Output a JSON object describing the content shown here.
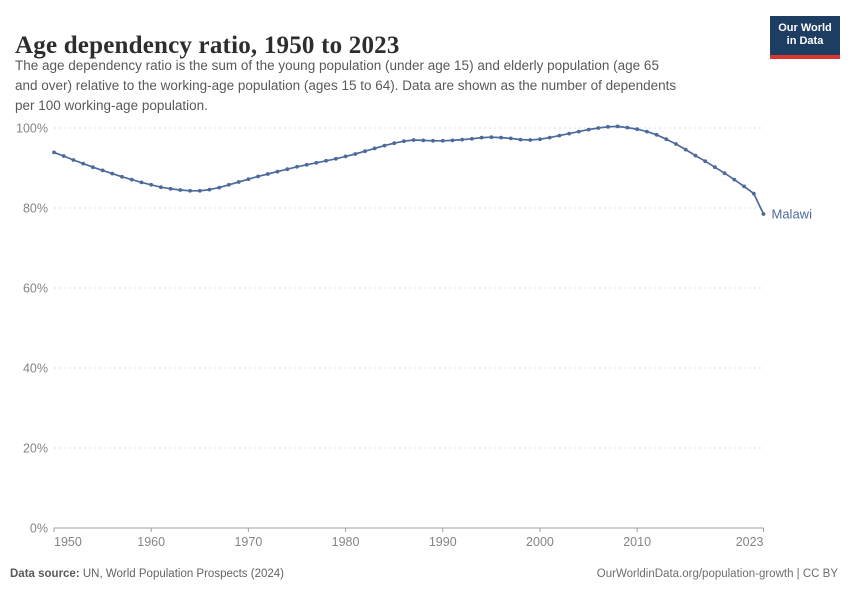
{
  "header": {
    "title": "Age dependency ratio, 1950 to 2023",
    "logo": {
      "line1": "Our World",
      "line2": "in Data"
    }
  },
  "subtitle": {
    "text": "The age dependency ratio is the sum of the young population (under age 15) and elderly population (age 65\nand over) relative to the working-age population (ages 15 to 64). Data are shown as the number of dependents\nper 100 working-age population."
  },
  "chart_data": {
    "type": "line",
    "title": "Age dependency ratio, 1950 to 2023",
    "xlabel": "",
    "ylabel": "",
    "unit": "%",
    "x_domain": [
      1950,
      2023
    ],
    "ylim": [
      0,
      105
    ],
    "yticks": [
      0,
      20,
      40,
      60,
      80,
      100
    ],
    "ytick_suffix": "%",
    "xticks": [
      1950,
      1960,
      1970,
      1980,
      1990,
      2000,
      2010,
      2023
    ],
    "grid": "horizontal-dashed",
    "legend": "end-of-line-label",
    "years": [
      1950,
      1951,
      1952,
      1953,
      1954,
      1955,
      1956,
      1957,
      1958,
      1959,
      1960,
      1961,
      1962,
      1963,
      1964,
      1965,
      1966,
      1967,
      1968,
      1969,
      1970,
      1971,
      1972,
      1973,
      1974,
      1975,
      1976,
      1977,
      1978,
      1979,
      1980,
      1981,
      1982,
      1983,
      1984,
      1985,
      1986,
      1987,
      1988,
      1989,
      1990,
      1991,
      1992,
      1993,
      1994,
      1995,
      1996,
      1997,
      1998,
      1999,
      2000,
      2001,
      2002,
      2003,
      2004,
      2005,
      2006,
      2007,
      2008,
      2009,
      2010,
      2011,
      2012,
      2013,
      2014,
      2015,
      2016,
      2017,
      2018,
      2019,
      2020,
      2021,
      2022,
      2023
    ],
    "series": [
      {
        "name": "Malawi",
        "color": "#4c6a9c",
        "values": [
          93.9,
          93.0,
          92.0,
          91.1,
          90.2,
          89.4,
          88.6,
          87.8,
          87.1,
          86.4,
          85.8,
          85.2,
          84.8,
          84.5,
          84.3,
          84.3,
          84.6,
          85.1,
          85.8,
          86.5,
          87.2,
          87.9,
          88.5,
          89.1,
          89.7,
          90.3,
          90.8,
          91.3,
          91.8,
          92.3,
          92.9,
          93.5,
          94.2,
          94.9,
          95.6,
          96.2,
          96.7,
          97.0,
          96.9,
          96.8,
          96.8,
          96.9,
          97.1,
          97.3,
          97.6,
          97.7,
          97.6,
          97.4,
          97.1,
          97.0,
          97.2,
          97.6,
          98.1,
          98.6,
          99.1,
          99.6,
          100.0,
          100.3,
          100.4,
          100.1,
          99.7,
          99.1,
          98.3,
          97.2,
          96.0,
          94.6,
          93.1,
          91.7,
          90.2,
          88.7,
          87.1,
          85.4,
          83.6,
          78.5
        ]
      }
    ]
  },
  "footer": {
    "source_label": "Data source:",
    "source_text": " UN, World Population Prospects (2024)",
    "link_text": "OurWorldinData.org/population-growth",
    "license_suffix": " | CC BY"
  },
  "colors": {
    "line": "#4c6a9c",
    "logo_bg": "#1d3d63",
    "logo_accent": "#dc372e",
    "grid": "#dcdcdc",
    "axis": "#a0a0a0",
    "tick_label": "#858585",
    "title_text": "#2d2d2d",
    "subtitle_text": "#595959",
    "footer_text": "#636363"
  }
}
